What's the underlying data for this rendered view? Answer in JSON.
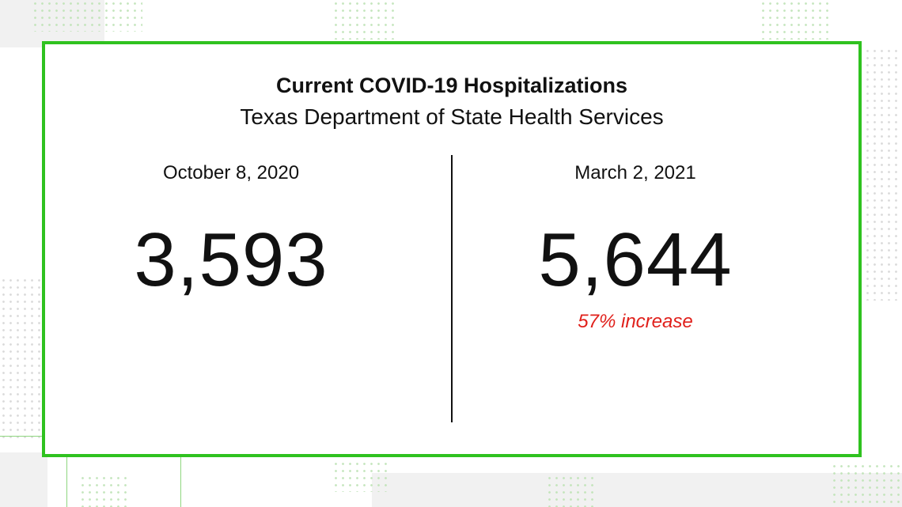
{
  "card": {
    "title": "Current COVID-19 Hospitalizations",
    "subtitle": "Texas Department of State Health Services",
    "left": {
      "date": "October 8, 2020",
      "value": "3,593"
    },
    "right": {
      "date": "March 2, 2021",
      "value": "5,644",
      "change": "57% increase"
    }
  },
  "colors": {
    "border": "#2fc21f",
    "text": "#111111",
    "increase": "#e0201b"
  }
}
